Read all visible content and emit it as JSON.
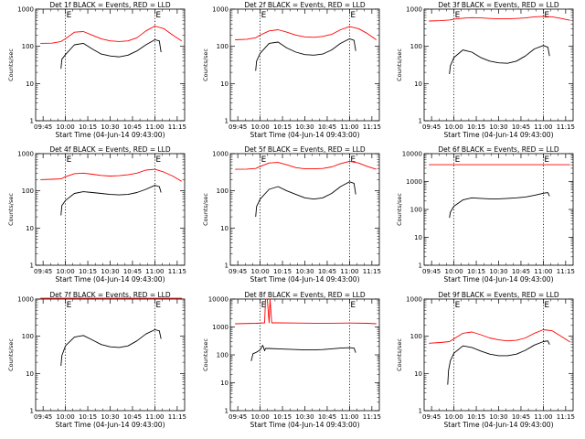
{
  "figure": {
    "xlabel_template": "Start Time (04-Jun-14 09:43:00)",
    "ylabel": "Counts/sec",
    "colors": {
      "events": "#000000",
      "lld": "#ff0000",
      "axes": "#000000",
      "marker": "#000000"
    },
    "markers": [
      {
        "label": "E",
        "time": 10.0
      },
      {
        "label": "E",
        "time": 11.0
      }
    ]
  },
  "chart_data": [
    {
      "type": "line",
      "title": "Det 1f BLACK = Events, RED = LLD",
      "xlabel": "Start Time (04-Jun-14 09:43:00)",
      "ylabel": "Counts/sec",
      "log_y": true,
      "ylim": [
        1,
        1000
      ],
      "yticks": [
        "1",
        "10",
        "100",
        "1000"
      ],
      "xlim": [
        9.6667,
        11.3333
      ],
      "xticks": [
        "09:45",
        "10:00",
        "10:15",
        "10:30",
        "10:45",
        "11:00",
        "11:15"
      ],
      "series": [
        {
          "name": "Events",
          "color": "#000000",
          "x": [
            9.95,
            9.96,
            10.0,
            10.1,
            10.2,
            10.3,
            10.4,
            10.5,
            10.6,
            10.7,
            10.8,
            10.9,
            11.0,
            11.05,
            11.07
          ],
          "y": [
            25,
            45,
            60,
            110,
            120,
            85,
            62,
            55,
            52,
            58,
            75,
            110,
            150,
            140,
            70
          ]
        },
        {
          "name": "LLD",
          "color": "#ff0000",
          "x": [
            9.72,
            9.85,
            9.95,
            10.0,
            10.1,
            10.2,
            10.3,
            10.4,
            10.5,
            10.6,
            10.7,
            10.8,
            10.9,
            11.0,
            11.1,
            11.2,
            11.3
          ],
          "y": [
            120,
            122,
            135,
            160,
            240,
            250,
            200,
            160,
            140,
            135,
            140,
            170,
            260,
            350,
            300,
            200,
            140
          ]
        }
      ]
    },
    {
      "type": "line",
      "title": "Det 2f BLACK = Events, RED = LLD",
      "xlabel": "Start Time (04-Jun-14 09:43:00)",
      "ylabel": "Counts/sec",
      "log_y": true,
      "ylim": [
        1,
        1000
      ],
      "yticks": [
        "1",
        "10",
        "100",
        "1000"
      ],
      "xlim": [
        9.6667,
        11.3333
      ],
      "xticks": [
        "09:45",
        "10:00",
        "10:15",
        "10:30",
        "10:45",
        "11:00",
        "11:15"
      ],
      "series": [
        {
          "name": "Events",
          "color": "#000000",
          "x": [
            9.95,
            9.96,
            10.0,
            10.1,
            10.2,
            10.3,
            10.4,
            10.5,
            10.6,
            10.7,
            10.8,
            10.9,
            11.0,
            11.05,
            11.07
          ],
          "y": [
            22,
            40,
            65,
            120,
            130,
            90,
            70,
            60,
            58,
            62,
            80,
            120,
            160,
            145,
            75
          ]
        },
        {
          "name": "LLD",
          "color": "#ff0000",
          "x": [
            9.72,
            9.85,
            9.95,
            10.0,
            10.1,
            10.2,
            10.3,
            10.4,
            10.5,
            10.6,
            10.7,
            10.8,
            10.9,
            11.0,
            11.1,
            11.2,
            11.3
          ],
          "y": [
            150,
            155,
            170,
            200,
            260,
            280,
            240,
            200,
            180,
            175,
            185,
            210,
            280,
            340,
            300,
            220,
            150
          ]
        }
      ]
    },
    {
      "type": "line",
      "title": "Det 3f BLACK = Events, RED = LLD",
      "xlabel": "Start Time (04-Jun-14 09:43:00)",
      "ylabel": "Counts/sec",
      "log_y": true,
      "ylim": [
        1,
        1000
      ],
      "yticks": [
        "1",
        "10",
        "100",
        "1000"
      ],
      "xlim": [
        9.6667,
        11.3333
      ],
      "xticks": [
        "09:45",
        "10:00",
        "10:15",
        "10:30",
        "10:45",
        "11:00",
        "11:15"
      ],
      "series": [
        {
          "name": "Events",
          "color": "#000000",
          "x": [
            9.95,
            9.96,
            10.0,
            10.1,
            10.2,
            10.3,
            10.4,
            10.5,
            10.6,
            10.7,
            10.8,
            10.9,
            11.0,
            11.05,
            11.07
          ],
          "y": [
            18,
            30,
            50,
            80,
            70,
            50,
            40,
            36,
            35,
            40,
            55,
            85,
            105,
            95,
            55
          ]
        },
        {
          "name": "LLD",
          "color": "#ff0000",
          "x": [
            9.72,
            9.85,
            9.95,
            10.0,
            10.1,
            10.2,
            10.3,
            10.4,
            10.5,
            10.6,
            10.7,
            10.8,
            10.9,
            11.0,
            11.1,
            11.2,
            11.3
          ],
          "y": [
            480,
            490,
            510,
            540,
            570,
            590,
            580,
            560,
            550,
            550,
            560,
            580,
            620,
            640,
            620,
            560,
            500
          ]
        }
      ]
    },
    {
      "type": "line",
      "title": "Det 4f BLACK = Events, RED = LLD",
      "xlabel": "Start Time (04-Jun-14 09:43:00)",
      "ylabel": "Counts/sec",
      "log_y": true,
      "ylim": [
        1,
        1000
      ],
      "yticks": [
        "1",
        "10",
        "100",
        "1000"
      ],
      "xlim": [
        9.6667,
        11.3333
      ],
      "xticks": [
        "09:45",
        "10:00",
        "10:15",
        "10:30",
        "10:45",
        "11:00",
        "11:15"
      ],
      "series": [
        {
          "name": "Events",
          "color": "#000000",
          "x": [
            9.95,
            9.96,
            10.0,
            10.1,
            10.2,
            10.3,
            10.4,
            10.5,
            10.6,
            10.7,
            10.8,
            10.9,
            11.0,
            11.05,
            11.07
          ],
          "y": [
            22,
            40,
            55,
            85,
            95,
            90,
            85,
            80,
            78,
            80,
            90,
            110,
            140,
            130,
            90
          ]
        },
        {
          "name": "LLD",
          "color": "#ff0000",
          "x": [
            9.72,
            9.85,
            9.95,
            10.0,
            10.1,
            10.2,
            10.3,
            10.4,
            10.5,
            10.6,
            10.7,
            10.8,
            10.9,
            11.0,
            11.1,
            11.2,
            11.3
          ],
          "y": [
            200,
            205,
            210,
            240,
            290,
            300,
            280,
            260,
            250,
            255,
            270,
            300,
            360,
            380,
            320,
            250,
            180
          ]
        }
      ]
    },
    {
      "type": "line",
      "title": "Det 5f BLACK = Events, RED = LLD",
      "xlabel": "Start Time (04-Jun-14 09:43:00)",
      "ylabel": "Counts/sec",
      "log_y": true,
      "ylim": [
        1,
        1000
      ],
      "yticks": [
        "1",
        "10",
        "100",
        "1000"
      ],
      "xlim": [
        9.6667,
        11.3333
      ],
      "xticks": [
        "09:45",
        "10:00",
        "10:15",
        "10:30",
        "10:45",
        "11:00",
        "11:15"
      ],
      "series": [
        {
          "name": "Events",
          "color": "#000000",
          "x": [
            9.95,
            9.96,
            10.0,
            10.1,
            10.2,
            10.3,
            10.4,
            10.5,
            10.6,
            10.7,
            10.8,
            10.9,
            11.0,
            11.05,
            11.07
          ],
          "y": [
            20,
            38,
            60,
            110,
            130,
            100,
            80,
            65,
            60,
            65,
            85,
            130,
            175,
            160,
            80
          ]
        },
        {
          "name": "LLD",
          "color": "#ff0000",
          "x": [
            9.72,
            9.85,
            9.95,
            10.0,
            10.1,
            10.2,
            10.3,
            10.4,
            10.5,
            10.6,
            10.7,
            10.8,
            10.9,
            11.0,
            11.1,
            11.2,
            11.3
          ],
          "y": [
            380,
            385,
            400,
            450,
            560,
            580,
            500,
            420,
            390,
            390,
            400,
            440,
            540,
            620,
            560,
            450,
            380
          ]
        }
      ]
    },
    {
      "type": "line",
      "title": "Det 6f BLACK = Events, RED = LLD",
      "xlabel": "Start Time (04-Jun-14 09:43:00)",
      "ylabel": "Counts/sec",
      "log_y": true,
      "ylim": [
        1,
        10000
      ],
      "yticks": [
        "1",
        "10",
        "100",
        "1000",
        "10000"
      ],
      "xlim": [
        9.6667,
        11.3333
      ],
      "xticks": [
        "09:45",
        "10:00",
        "10:15",
        "10:30",
        "10:45",
        "11:00",
        "11:15"
      ],
      "series": [
        {
          "name": "Events",
          "color": "#000000",
          "x": [
            9.95,
            9.96,
            10.0,
            10.1,
            10.2,
            10.3,
            10.4,
            10.5,
            10.6,
            10.7,
            10.8,
            10.9,
            11.0,
            11.05,
            11.07
          ],
          "y": [
            50,
            80,
            130,
            220,
            260,
            250,
            240,
            240,
            250,
            260,
            280,
            320,
            380,
            400,
            300
          ]
        },
        {
          "name": "LLD",
          "color": "#ff0000",
          "x": [
            9.72,
            11.3
          ],
          "y": [
            4000,
            4000
          ]
        }
      ]
    },
    {
      "type": "line",
      "title": "Det 7f BLACK = Events, RED = LLD",
      "xlabel": "Start Time (04-Jun-14 09:43:00)",
      "ylabel": "Counts/sec",
      "log_y": true,
      "ylim": [
        1,
        1000
      ],
      "yticks": [
        "1",
        "10",
        "100",
        "1000"
      ],
      "xlim": [
        9.6667,
        11.3333
      ],
      "xticks": [
        "09:45",
        "10:00",
        "10:15",
        "10:30",
        "10:45",
        "11:00",
        "11:15"
      ],
      "series": [
        {
          "name": "Events",
          "color": "#000000",
          "x": [
            9.95,
            9.96,
            10.0,
            10.1,
            10.2,
            10.3,
            10.4,
            10.5,
            10.6,
            10.7,
            10.8,
            10.9,
            11.0,
            11.05,
            11.07
          ],
          "y": [
            16,
            30,
            55,
            95,
            105,
            80,
            60,
            52,
            50,
            55,
            75,
            115,
            150,
            140,
            85
          ]
        },
        {
          "name": "LLD",
          "color": "#ff0000",
          "x": [
            9.72,
            11.3
          ],
          "y": [
            1050,
            1050
          ]
        }
      ]
    },
    {
      "type": "line",
      "title": "Det 8f BLACK = Events, RED = LLD",
      "xlabel": "Start Time (04-Jun-14 09:43:00)",
      "ylabel": "Counts/sec",
      "log_y": true,
      "ylim": [
        1,
        10000
      ],
      "yticks": [
        "1",
        "10",
        "100",
        "1000",
        "10000"
      ],
      "xlim": [
        9.6667,
        11.3333
      ],
      "xticks": [
        "09:45",
        "10:00",
        "10:15",
        "10:30",
        "10:45",
        "11:00",
        "11:15"
      ],
      "series": [
        {
          "name": "Events",
          "color": "#000000",
          "x": [
            9.9,
            9.92,
            9.95,
            10.0,
            10.02,
            10.03,
            10.05,
            10.06,
            10.1,
            10.2,
            10.3,
            10.4,
            10.5,
            10.6,
            10.7,
            10.8,
            10.9,
            11.0,
            11.05,
            11.07
          ],
          "y": [
            60,
            110,
            120,
            150,
            200,
            220,
            140,
            170,
            170,
            165,
            160,
            155,
            150,
            150,
            155,
            165,
            175,
            180,
            175,
            120
          ]
        },
        {
          "name": "LLD",
          "color": "#ff0000",
          "x": [
            9.72,
            9.95,
            10.05,
            10.06,
            10.08,
            10.1,
            10.11,
            10.13,
            10.2,
            10.4,
            10.6,
            10.8,
            11.0,
            11.2,
            11.3
          ],
          "y": [
            1300,
            1350,
            1400,
            10000,
            10000,
            1400,
            10000,
            1400,
            1400,
            1380,
            1360,
            1360,
            1380,
            1350,
            1300
          ]
        }
      ]
    },
    {
      "type": "line",
      "title": "Det 9f BLACK = Events, RED = LLD",
      "xlabel": "Start Time (04-Jun-14 09:43:00)",
      "ylabel": "Counts/sec",
      "log_y": true,
      "ylim": [
        1,
        1000
      ],
      "yticks": [
        "1",
        "10",
        "100",
        "1000"
      ],
      "xlim": [
        9.6667,
        11.3333
      ],
      "xticks": [
        "09:45",
        "10:00",
        "10:15",
        "10:30",
        "10:45",
        "11:00",
        "11:15"
      ],
      "series": [
        {
          "name": "Events",
          "color": "#000000",
          "x": [
            9.93,
            9.94,
            9.96,
            10.0,
            10.1,
            10.2,
            10.3,
            10.4,
            10.5,
            10.6,
            10.7,
            10.8,
            10.9,
            11.0,
            11.05,
            11.07
          ],
          "y": [
            5,
            12,
            22,
            35,
            55,
            50,
            40,
            33,
            30,
            30,
            33,
            42,
            58,
            72,
            75,
            60
          ]
        },
        {
          "name": "LLD",
          "color": "#ff0000",
          "x": [
            9.72,
            9.85,
            9.95,
            10.0,
            10.1,
            10.2,
            10.3,
            10.4,
            10.5,
            10.6,
            10.7,
            10.8,
            10.9,
            11.0,
            11.1,
            11.2,
            11.3
          ],
          "y": [
            65,
            68,
            72,
            85,
            120,
            130,
            110,
            90,
            80,
            75,
            78,
            90,
            120,
            150,
            140,
            100,
            70
          ]
        }
      ]
    }
  ]
}
